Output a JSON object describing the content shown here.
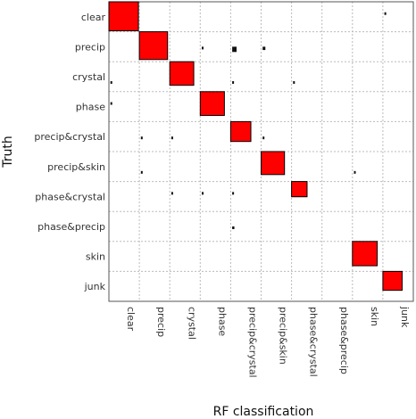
{
  "chart_data": {
    "type": "heatmap",
    "title": "",
    "xlabel": "RF classification",
    "ylabel": "Truth",
    "categories": [
      "clear",
      "precip",
      "crystal",
      "phase",
      "precip&crystal",
      "precip&skin",
      "phase&crystal",
      "phase&precip",
      "skin",
      "junk"
    ],
    "rows": [
      "clear",
      "precip",
      "crystal",
      "phase",
      "precip&crystal",
      "precip&skin",
      "phase&crystal",
      "phase&precip",
      "skin",
      "junk"
    ],
    "matrix": [
      [
        0.94,
        0,
        0,
        0,
        0,
        0,
        0,
        0,
        0,
        0.03
      ],
      [
        0,
        0.86,
        0,
        0.01,
        0.08,
        0.05,
        0,
        0,
        0,
        0
      ],
      [
        0.02,
        0,
        0.62,
        0,
        0.02,
        0,
        0.02,
        0,
        0,
        0
      ],
      [
        0.01,
        0,
        0,
        0.63,
        0,
        0,
        0,
        0,
        0,
        0
      ],
      [
        0,
        0.01,
        0.03,
        0,
        0.44,
        0.01,
        0,
        0,
        0,
        0
      ],
      [
        0,
        0.01,
        0,
        0,
        0,
        0.59,
        0,
        0,
        0.02,
        0
      ],
      [
        0,
        0,
        0.03,
        0.02,
        0.02,
        0,
        0.26,
        0,
        0,
        0
      ],
      [
        0,
        0,
        0,
        0,
        0.04,
        0,
        0,
        0,
        0,
        0
      ],
      [
        0,
        0,
        0,
        0,
        0,
        0,
        0,
        0,
        0.66,
        0
      ],
      [
        0,
        0,
        0,
        0,
        0,
        0,
        0,
        0,
        0,
        0.4
      ]
    ],
    "grid": true,
    "colors": {
      "box": "#ff0000",
      "box_border": "#000000",
      "grid": "#bbbbbb",
      "frame": "#555555",
      "label": "#333333"
    }
  }
}
